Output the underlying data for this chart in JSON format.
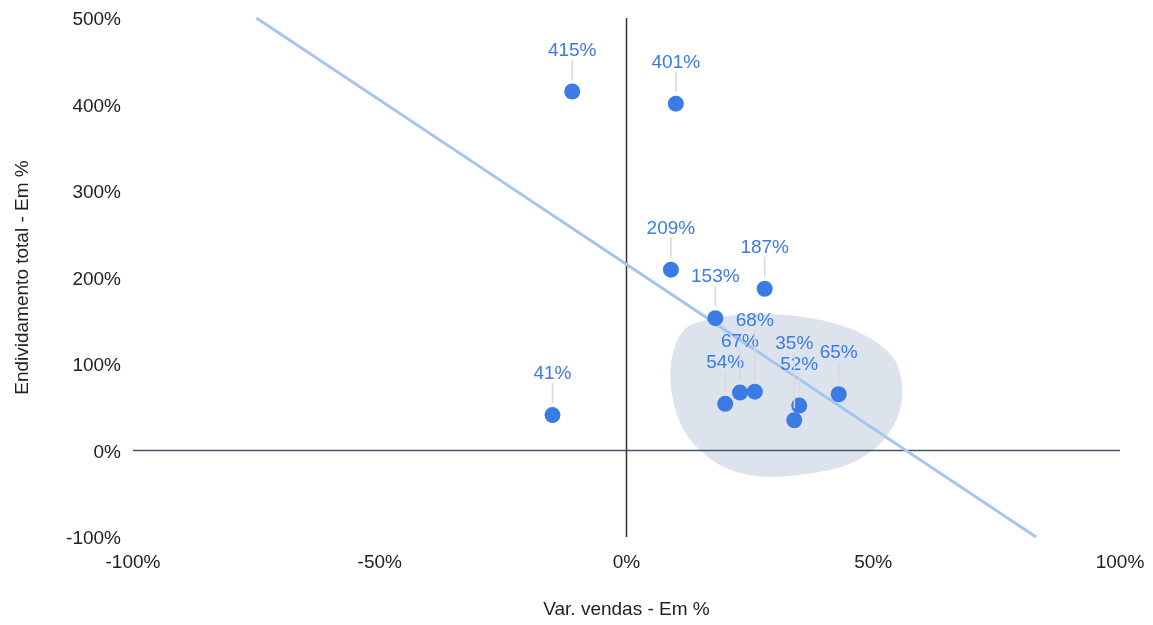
{
  "chart_data": {
    "type": "scatter",
    "xlabel": "Var. vendas - Em %",
    "ylabel": "Endividamento total - Em %",
    "xlim": [
      -100,
      100
    ],
    "ylim": [
      -100,
      500
    ],
    "xticks": [
      {
        "value": -100,
        "label": "-100%"
      },
      {
        "value": -50,
        "label": "-50%"
      },
      {
        "value": 0,
        "label": "0%"
      },
      {
        "value": 50,
        "label": "50%"
      },
      {
        "value": 100,
        "label": "100%"
      }
    ],
    "yticks": [
      {
        "value": -100,
        "label": "-100%"
      },
      {
        "value": 0,
        "label": "0%"
      },
      {
        "value": 100,
        "label": "100%"
      },
      {
        "value": 200,
        "label": "200%"
      },
      {
        "value": 300,
        "label": "300%"
      },
      {
        "value": 400,
        "label": "400%"
      },
      {
        "value": 500,
        "label": "500%"
      }
    ],
    "ref_lines": [
      {
        "axis": "x",
        "value": 0,
        "color": "#333333"
      },
      {
        "axis": "y",
        "value": 0,
        "color": "#44546a"
      }
    ],
    "series": [
      {
        "color": "#3b7be6",
        "x": [
          -11,
          10,
          9,
          28,
          18,
          -15,
          20,
          23,
          26,
          35,
          34,
          43
        ],
        "values": [
          415,
          401,
          209,
          187,
          153,
          41,
          54,
          67,
          68,
          52,
          35,
          65
        ],
        "value_labels": [
          "415%",
          "401%",
          "209%",
          "187%",
          "153%",
          "41%",
          "54%",
          "67%",
          "68%",
          "52%",
          "35%",
          "65%"
        ]
      },
      {
        "type": "line",
        "color": "#a8c4f2",
        "x": [
          -75,
          83
        ],
        "values": [
          500,
          -100
        ],
        "line_style": "solid"
      }
    ]
  }
}
